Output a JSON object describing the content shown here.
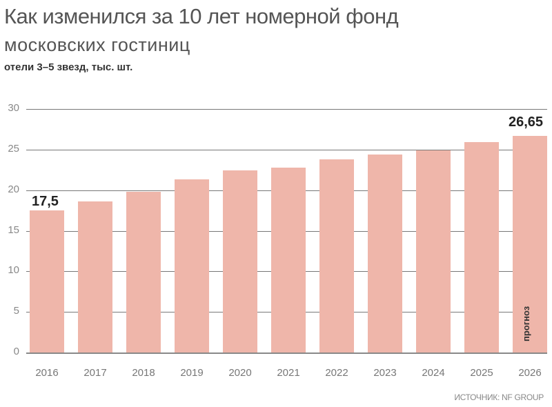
{
  "header": {
    "title": "Как изменился за 10 лет номерной фонд",
    "subtitle": "московских гостиниц",
    "unit": "отели 3–5 звезд, тыс. шт."
  },
  "labels": {
    "first_value": "17,5",
    "last_value": "26,65",
    "forecast": "прогноз",
    "source": "ИСТОЧНИК: NF GROUP"
  },
  "colors": {
    "bar": "#efb6aa",
    "grid": "#777777"
  },
  "chart_data": {
    "type": "bar",
    "title": "Как изменился за 10 лет номерной фонд московских гостиниц",
    "subtitle": "отели 3–5 звезд, тыс. шт.",
    "xlabel": "",
    "ylabel": "тыс. шт.",
    "categories": [
      "2016",
      "2017",
      "2018",
      "2019",
      "2020",
      "2021",
      "2022",
      "2023",
      "2024",
      "2025",
      "2026"
    ],
    "values": [
      17.5,
      18.6,
      19.8,
      21.3,
      22.4,
      22.8,
      23.8,
      24.4,
      24.9,
      25.9,
      26.65
    ],
    "yticks": [
      0,
      5,
      10,
      15,
      20,
      25,
      30
    ],
    "ylim": [
      0,
      30
    ],
    "grid": true,
    "annotations": [
      {
        "category": "2016",
        "text": "17,5"
      },
      {
        "category": "2026",
        "text": "26,65"
      },
      {
        "category": "2026",
        "text": "прогноз",
        "note": "forecast, rotated inside bar"
      }
    ],
    "source": "ИСТОЧНИК: NF GROUP"
  }
}
